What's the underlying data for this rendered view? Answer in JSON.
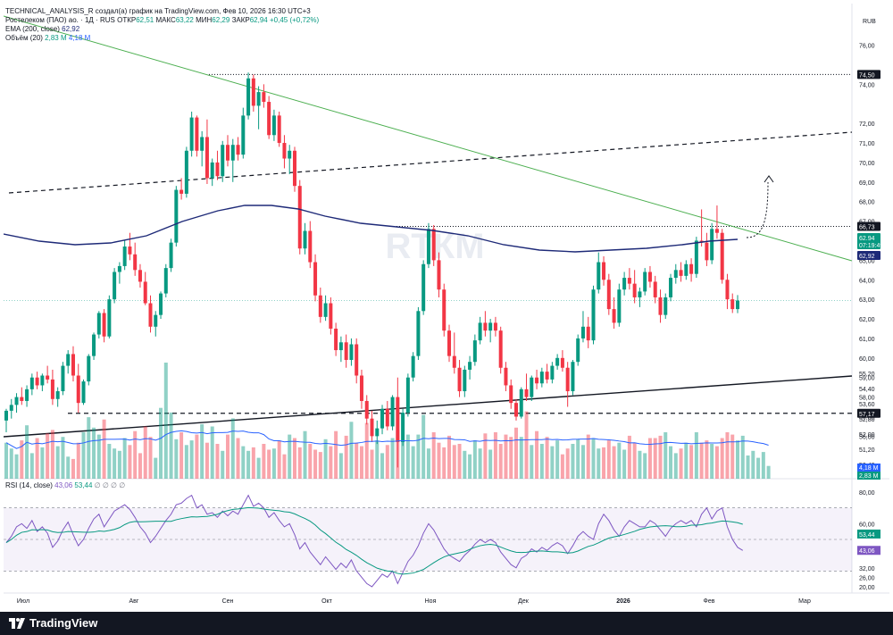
{
  "header": {
    "author_line": "TECHNICAL_ANALYSIS_R создал(а) график на TradingView.com, Фев 10, 2026 16:30 UTC+3",
    "symbol": "Ростелеком (ПАО) ао. · 1Д · RUS",
    "open_label": "ОТКР",
    "open_value": "62,51",
    "high_label": "МАКС",
    "high_value": "63,22",
    "low_label": "МИН",
    "low_value": "62,29",
    "close_label": "ЗАКР",
    "close_value": "62,94",
    "change": "+0,45 (+0,72%)",
    "ema_label": "EMA (200, close)",
    "ema_value": "62,92",
    "vol_label": "Объём (20)",
    "vol_value1": "2,83 M",
    "vol_value2": "4,18 M"
  },
  "rsi_legend": {
    "label": "RSI (14, close)",
    "value1": "43,06",
    "value2": "53,44",
    "extra": "∅ ∅ ∅ ∅"
  },
  "currency": "RUB",
  "watermark": "RTКМ",
  "footer": {
    "logo_text": "TradingView"
  },
  "colors": {
    "up": "#089981",
    "down": "#f23645",
    "ema": "#1e2a78",
    "trend": "#4caf50",
    "rsi": "#7e57c2",
    "rsi_ma": "#089981",
    "vol_ma": "#2962ff"
  },
  "chart_data": {
    "type": "candlestick",
    "price_axis_ticks": [
      "76,00",
      "74,00",
      "72,00",
      "71,00",
      "70,00",
      "69,00",
      "68,00",
      "67,00",
      "66,00",
      "65,00",
      "64,00",
      "63,00",
      "62,00",
      "61,00",
      "60,00",
      "59,00",
      "58,00",
      "57,00",
      "56,00",
      "55,20",
      "54,40",
      "53,60",
      "52,80",
      "52,00",
      "51,20",
      "50,40"
    ],
    "price_markers": [
      {
        "label": "74,50",
        "value": 74.5,
        "style": "dark"
      },
      {
        "label": "66,73",
        "value": 66.73,
        "style": "dark"
      },
      {
        "label": "62,94",
        "value": 62.94,
        "style": "up"
      },
      {
        "label": "07:19:49",
        "value": 62.6,
        "style": "up"
      },
      {
        "label": "62,92",
        "value": 62.92,
        "style": "navy"
      },
      {
        "label": "57,17",
        "value": 57.17,
        "style": "dark"
      }
    ],
    "volume_markers": [
      {
        "label": "4,18 M",
        "style": "blue"
      },
      {
        "label": "2,83 M",
        "style": "up"
      }
    ],
    "rsi_axis_ticks": [
      "80,00",
      "60,00",
      "53,44",
      "43,06",
      "32,00",
      "26,00",
      "20,00"
    ],
    "rsi_markers": [
      {
        "label": "53,44",
        "value": 53.44,
        "style": "up"
      },
      {
        "label": "43,06",
        "value": 43.06,
        "style": "purple"
      }
    ],
    "time_labels": [
      "Июл",
      "Авг",
      "Сен",
      "Окт",
      "Ноя",
      "Дек",
      "2026",
      "Фев",
      "Мар"
    ],
    "levels": [
      74.5,
      66.73,
      57.17
    ],
    "candles": [
      [
        56.8,
        57.4,
        56.2,
        57.3
      ],
      [
        57.3,
        57.9,
        56.9,
        57.6
      ],
      [
        57.6,
        58.2,
        57.2,
        58
      ],
      [
        58,
        58.5,
        57.6,
        57.8
      ],
      [
        57.8,
        58.6,
        57.5,
        58.4
      ],
      [
        58.4,
        59.2,
        58.1,
        59
      ],
      [
        59,
        59.3,
        58.4,
        58.6
      ],
      [
        58.6,
        59.2,
        58.3,
        59.1
      ],
      [
        59.1,
        59.6,
        58.7,
        58.9
      ],
      [
        58.9,
        59.4,
        57.6,
        57.9
      ],
      [
        57.9,
        58.5,
        57.5,
        58.3
      ],
      [
        58.3,
        59.8,
        58.1,
        59.6
      ],
      [
        59.6,
        60.4,
        59.2,
        60.2
      ],
      [
        60.2,
        60.6,
        58.8,
        59.1
      ],
      [
        59.1,
        59.7,
        57.2,
        57.7
      ],
      [
        57.7,
        58.9,
        57.6,
        58.8
      ],
      [
        58.8,
        60.2,
        58.6,
        60.1
      ],
      [
        60.1,
        61.3,
        59.9,
        61.2
      ],
      [
        61.2,
        62.4,
        61,
        62.3
      ],
      [
        62.3,
        62.5,
        60.8,
        61.1
      ],
      [
        61.1,
        63.2,
        61,
        63
      ],
      [
        63,
        64.6,
        62.8,
        64.4
      ],
      [
        64.4,
        64.9,
        63.8,
        64.7
      ],
      [
        64.7,
        66,
        64.5,
        65.7
      ],
      [
        65.7,
        66.4,
        65,
        65.3
      ],
      [
        65.3,
        65.9,
        64.2,
        64.5
      ],
      [
        64.5,
        64.8,
        63.6,
        63.9
      ],
      [
        63.9,
        64.4,
        62.7,
        62.8
      ],
      [
        62.8,
        63.2,
        61.3,
        61.6
      ],
      [
        61.6,
        62.4,
        61.1,
        62.2
      ],
      [
        62.2,
        63.4,
        62,
        63.3
      ],
      [
        63.3,
        64.8,
        63.1,
        64.6
      ],
      [
        64.6,
        66.1,
        64.4,
        65.9
      ],
      [
        65.9,
        68.8,
        65.7,
        68.6
      ],
      [
        68.6,
        69.2,
        68.1,
        68.4
      ],
      [
        68.4,
        70.8,
        68.2,
        70.6
      ],
      [
        70.6,
        72.6,
        70.3,
        72.3
      ],
      [
        72.3,
        72.4,
        70.3,
        70.6
      ],
      [
        70.6,
        71.6,
        69.8,
        71.3
      ],
      [
        71.3,
        72.2,
        68.9,
        69.2
      ],
      [
        69.2,
        70.2,
        68.8,
        70
      ],
      [
        70,
        70.6,
        69.1,
        69.3
      ],
      [
        69.3,
        71.1,
        69,
        70.9
      ],
      [
        70.9,
        71.4,
        69.8,
        70.1
      ],
      [
        70.1,
        71.2,
        69,
        70.9
      ],
      [
        70.9,
        71.3,
        70.1,
        70.4
      ],
      [
        70.4,
        72.8,
        70.2,
        72.4
      ],
      [
        72.4,
        74.6,
        72.2,
        74.3
      ],
      [
        74.3,
        74.5,
        72.6,
        72.9
      ],
      [
        72.9,
        73.9,
        71.7,
        73.6
      ],
      [
        73.6,
        74,
        72.8,
        73.1
      ],
      [
        73.1,
        73.4,
        71.2,
        71.4
      ],
      [
        71.4,
        72.7,
        71.1,
        72.4
      ],
      [
        72.4,
        72.6,
        70.8,
        71
      ],
      [
        71,
        71.4,
        69.7,
        70.2
      ],
      [
        70.2,
        70.9,
        69.4,
        70.6
      ],
      [
        70.6,
        70.8,
        68.5,
        68.8
      ],
      [
        68.8,
        69.1,
        65.3,
        65.6
      ],
      [
        65.6,
        66.9,
        65.3,
        66.5
      ],
      [
        66.5,
        67,
        64.6,
        64.9
      ],
      [
        64.9,
        65.3,
        62.9,
        63.2
      ],
      [
        63.2,
        63.6,
        61.8,
        62.1
      ],
      [
        62.1,
        63.2,
        61.9,
        62.8
      ],
      [
        62.8,
        63.1,
        61.2,
        61.5
      ],
      [
        61.5,
        61.8,
        60.1,
        60.4
      ],
      [
        60.4,
        61.1,
        59.8,
        60.8
      ],
      [
        60.8,
        61.2,
        59.5,
        59.9
      ],
      [
        59.9,
        61,
        59.6,
        60.7
      ],
      [
        60.7,
        61,
        58.7,
        59.1
      ],
      [
        59.1,
        59.4,
        57.4,
        57.8
      ],
      [
        57.8,
        58.1,
        56.6,
        56.9
      ],
      [
        56.9,
        57.3,
        55.7,
        56
      ],
      [
        56,
        56.8,
        55.6,
        56.4
      ],
      [
        56.4,
        57.6,
        56.1,
        57.4
      ],
      [
        57.4,
        57.8,
        56.3,
        56.5
      ],
      [
        56.5,
        58.1,
        56.3,
        58
      ],
      [
        58,
        59,
        54.4,
        55.7
      ],
      [
        55.7,
        57.4,
        55.5,
        57.2
      ],
      [
        57.2,
        59.2,
        57,
        59
      ],
      [
        59,
        60.3,
        58.8,
        60.1
      ],
      [
        60.1,
        62.6,
        59.9,
        62.4
      ],
      [
        62.4,
        65,
        62.2,
        64.8
      ],
      [
        64.8,
        66.9,
        64.6,
        66.6
      ],
      [
        66.6,
        66.8,
        64.7,
        65
      ],
      [
        65,
        65.4,
        63.1,
        63.5
      ],
      [
        63.5,
        63.8,
        61.1,
        61.4
      ],
      [
        61.4,
        61.7,
        59.8,
        60.1
      ],
      [
        60.1,
        61.3,
        59.2,
        59.5
      ],
      [
        59.5,
        59.9,
        58,
        58.3
      ],
      [
        58.3,
        59.6,
        58,
        59.4
      ],
      [
        59.4,
        60.1,
        58.9,
        59.8
      ],
      [
        59.8,
        61.2,
        59.6,
        60.9
      ],
      [
        60.9,
        62.1,
        60.7,
        61.8
      ],
      [
        61.8,
        62.4,
        61.1,
        61.4
      ],
      [
        61.4,
        62,
        60.8,
        61.8
      ],
      [
        61.8,
        62.1,
        61.1,
        61.4
      ],
      [
        61.4,
        61.6,
        59.2,
        59.5
      ],
      [
        59.5,
        59.8,
        58.3,
        58.6
      ],
      [
        58.6,
        58.9,
        57.4,
        57.7
      ],
      [
        57.7,
        57.9,
        56.8,
        57
      ],
      [
        57,
        58.5,
        56.9,
        58.4
      ],
      [
        58.4,
        59.2,
        57.8,
        58
      ],
      [
        58,
        59.1,
        57.8,
        59
      ],
      [
        59,
        59.4,
        58.4,
        58.7
      ],
      [
        58.7,
        59.5,
        58.5,
        59.3
      ],
      [
        59.3,
        59.7,
        58.7,
        58.9
      ],
      [
        58.9,
        59.8,
        58.7,
        59.6
      ],
      [
        59.6,
        60.2,
        59.4,
        60
      ],
      [
        60,
        60.4,
        59.3,
        59.5
      ],
      [
        59.5,
        59.8,
        57.5,
        58.3
      ],
      [
        58.3,
        59.9,
        58.1,
        59.8
      ],
      [
        59.8,
        61.2,
        59.6,
        61
      ],
      [
        61,
        62.4,
        60.8,
        61.6
      ],
      [
        61.6,
        62.1,
        60.5,
        60.9
      ],
      [
        60.9,
        63.7,
        60.7,
        63.5
      ],
      [
        63.5,
        65.4,
        63.3,
        64.9
      ],
      [
        64.9,
        65.2,
        63.7,
        64
      ],
      [
        64,
        64.3,
        62.2,
        62.5
      ],
      [
        62.5,
        63.1,
        61.5,
        61.8
      ],
      [
        61.8,
        63.8,
        61.6,
        63.5
      ],
      [
        63.5,
        64.4,
        63.2,
        64.1
      ],
      [
        64.1,
        64.6,
        63.5,
        63.8
      ],
      [
        63.8,
        64.5,
        62.8,
        63.1
      ],
      [
        63.1,
        63.6,
        62.6,
        63.4
      ],
      [
        63.4,
        64.6,
        63.2,
        64.4
      ],
      [
        64.4,
        64.7,
        63.6,
        63.9
      ],
      [
        63.9,
        64.2,
        62.8,
        63.1
      ],
      [
        63.1,
        63.5,
        61.8,
        62.2
      ],
      [
        62.2,
        63.3,
        62,
        63.1
      ],
      [
        63.1,
        64.3,
        62.9,
        64.1
      ],
      [
        64.1,
        64.8,
        63.8,
        64.5
      ],
      [
        64.5,
        64.9,
        63.9,
        64.2
      ],
      [
        64.2,
        65,
        64,
        64.8
      ],
      [
        64.8,
        65.1,
        63.9,
        64.3
      ],
      [
        64.3,
        66.2,
        64.1,
        66
      ],
      [
        66,
        67.6,
        65.7,
        65.9
      ],
      [
        65.9,
        66.4,
        64.7,
        65
      ],
      [
        65,
        66.9,
        64.8,
        66.6
      ],
      [
        66.6,
        67.8,
        66.1,
        66.4
      ],
      [
        66.4,
        66.6,
        63.8,
        64
      ],
      [
        64,
        64.3,
        62.5,
        63
      ],
      [
        63,
        63.3,
        62.3,
        62.5
      ],
      [
        62.5,
        63.22,
        62.29,
        62.94
      ]
    ],
    "volume": [
      31,
      26,
      21,
      33,
      46,
      22,
      35,
      27,
      39,
      42,
      28,
      36,
      19,
      17,
      31,
      40,
      53,
      44,
      38,
      51,
      30,
      26,
      24,
      35,
      29,
      41,
      22,
      45,
      36,
      18,
      61,
      100,
      57,
      34,
      40,
      29,
      33,
      38,
      47,
      31,
      45,
      30,
      24,
      38,
      52,
      35,
      28,
      24,
      27,
      18,
      30,
      25,
      26,
      33,
      21,
      38,
      35,
      27,
      41,
      30,
      25,
      23,
      34,
      28,
      41,
      22,
      37,
      49,
      31,
      28,
      48,
      25,
      33,
      22,
      29,
      35,
      42,
      33,
      38,
      28,
      38,
      55,
      26,
      40,
      31,
      27,
      37,
      29,
      30,
      24,
      21,
      33,
      26,
      39,
      25,
      40,
      30,
      38,
      36,
      44,
      36,
      58,
      29,
      41,
      30,
      36,
      28,
      33,
      21,
      26,
      30,
      34,
      29,
      38,
      35,
      26,
      27,
      33,
      28,
      31,
      25,
      37,
      31,
      24,
      22,
      35,
      35,
      37,
      40,
      28,
      22,
      26,
      31,
      29,
      40,
      31,
      33,
      30,
      28,
      35,
      40,
      38,
      33,
      37,
      20,
      24,
      18,
      23,
      11
    ],
    "volume_ma_label": "4,18 M",
    "ema_200": "62,92",
    "rsi": [
      48,
      52,
      58,
      60,
      57,
      62,
      55,
      58,
      54,
      45,
      49,
      56,
      61,
      53,
      46,
      50,
      57,
      63,
      66,
      58,
      63,
      68,
      70,
      72,
      69,
      64,
      58,
      54,
      48,
      52,
      57,
      62,
      66,
      72,
      73,
      76,
      78,
      70,
      72,
      66,
      67,
      64,
      68,
      65,
      68,
      66,
      72,
      78,
      71,
      73,
      70,
      64,
      67,
      62,
      58,
      60,
      53,
      44,
      48,
      42,
      38,
      34,
      39,
      35,
      31,
      35,
      32,
      37,
      30,
      26,
      22,
      20,
      24,
      28,
      26,
      30,
      22,
      29,
      36,
      40,
      46,
      54,
      60,
      56,
      50,
      44,
      40,
      38,
      36,
      40,
      43,
      47,
      50,
      48,
      50,
      48,
      42,
      38,
      34,
      32,
      38,
      40,
      44,
      42,
      45,
      43,
      46,
      48,
      46,
      41,
      46,
      52,
      55,
      52,
      50,
      60,
      66,
      62,
      56,
      52,
      58,
      62,
      60,
      58,
      58,
      62,
      60,
      56,
      52,
      57,
      60,
      62,
      60,
      62,
      58,
      66,
      70,
      63,
      68,
      70,
      58,
      50,
      45,
      43
    ]
  }
}
